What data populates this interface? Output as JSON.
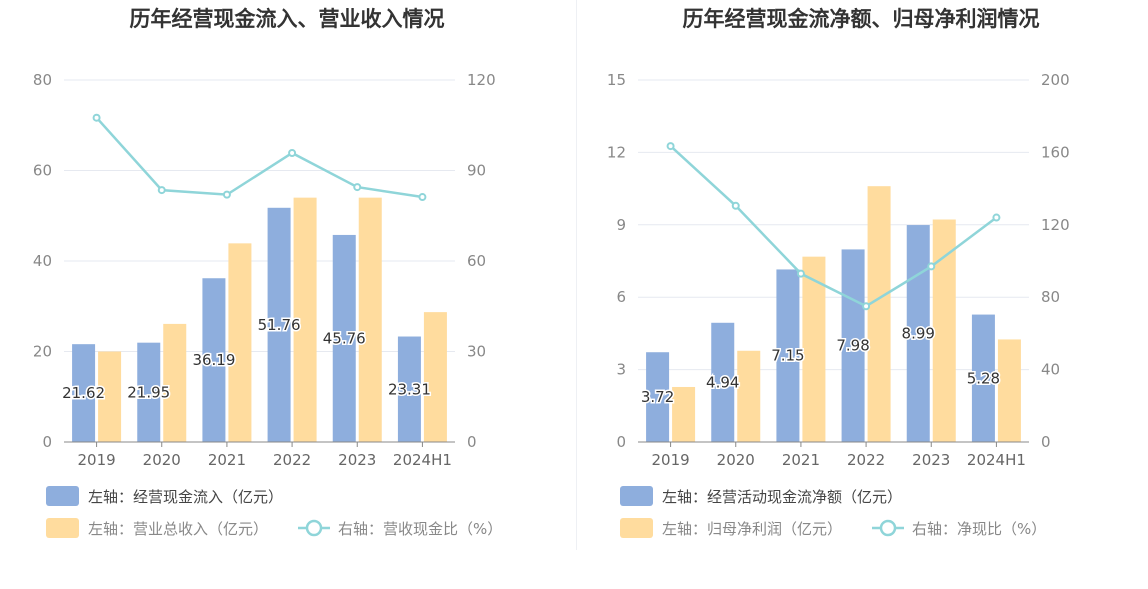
{
  "chart_data": [
    {
      "type": "bar",
      "title": "历年经营现金流入、营业收入情况",
      "categories": [
        "2019",
        "2020",
        "2021",
        "2022",
        "2023",
        "2024H1"
      ],
      "left_axis": {
        "ylim": [
          0,
          80
        ],
        "ticks": [
          "0",
          "20",
          "40",
          "60",
          "80"
        ]
      },
      "right_axis": {
        "ylim": [
          0,
          120
        ],
        "ticks": [
          "0",
          "30",
          "60",
          "90",
          "120"
        ]
      },
      "series": [
        {
          "name": "左轴：经营现金流入（亿元）",
          "kind": "bar",
          "axis": "left",
          "color": "#8eaedd",
          "values": [
            21.62,
            21.95,
            36.19,
            51.76,
            45.76,
            23.31
          ],
          "labels": [
            "21.62",
            "21.95",
            "36.19",
            "51.76",
            "45.76",
            "23.31"
          ]
        },
        {
          "name": "左轴：营业总收入（亿元）",
          "kind": "bar",
          "axis": "left",
          "color": "#ffdc9e",
          "values": [
            20.0,
            26.1,
            43.9,
            54.0,
            54.0,
            28.7
          ]
        },
        {
          "name": "右轴：营收现金比（%）",
          "kind": "line",
          "axis": "right",
          "color": "#8fd5d9",
          "values": [
            107.5,
            83.5,
            82.0,
            95.8,
            84.5,
            81.2
          ]
        }
      ]
    },
    {
      "type": "bar",
      "title": "历年经营现金流净额、归母净利润情况",
      "categories": [
        "2019",
        "2020",
        "2021",
        "2022",
        "2023",
        "2024H1"
      ],
      "left_axis": {
        "ylim": [
          0,
          15
        ],
        "ticks": [
          "0",
          "3",
          "6",
          "9",
          "12",
          "15"
        ]
      },
      "right_axis": {
        "ylim": [
          0,
          200
        ],
        "ticks": [
          "0",
          "40",
          "80",
          "120",
          "160",
          "200"
        ]
      },
      "series": [
        {
          "name": "左轴：经营活动现金流净额（亿元）",
          "kind": "bar",
          "axis": "left",
          "color": "#8eaedd",
          "values": [
            3.72,
            4.94,
            7.15,
            7.98,
            8.99,
            5.28
          ],
          "labels": [
            "3.72",
            "4.94",
            "7.15",
            "7.98",
            "8.99",
            "5.28"
          ]
        },
        {
          "name": "左轴：归母净利润（亿元）",
          "kind": "bar",
          "axis": "left",
          "color": "#ffdc9e",
          "values": [
            2.28,
            3.78,
            7.68,
            10.6,
            9.22,
            4.25
          ]
        },
        {
          "name": "右轴：净现比（%）",
          "kind": "line",
          "axis": "right",
          "color": "#8fd5d9",
          "values": [
            163.5,
            130.5,
            93.0,
            75.0,
            97.0,
            124.0
          ]
        }
      ]
    }
  ]
}
